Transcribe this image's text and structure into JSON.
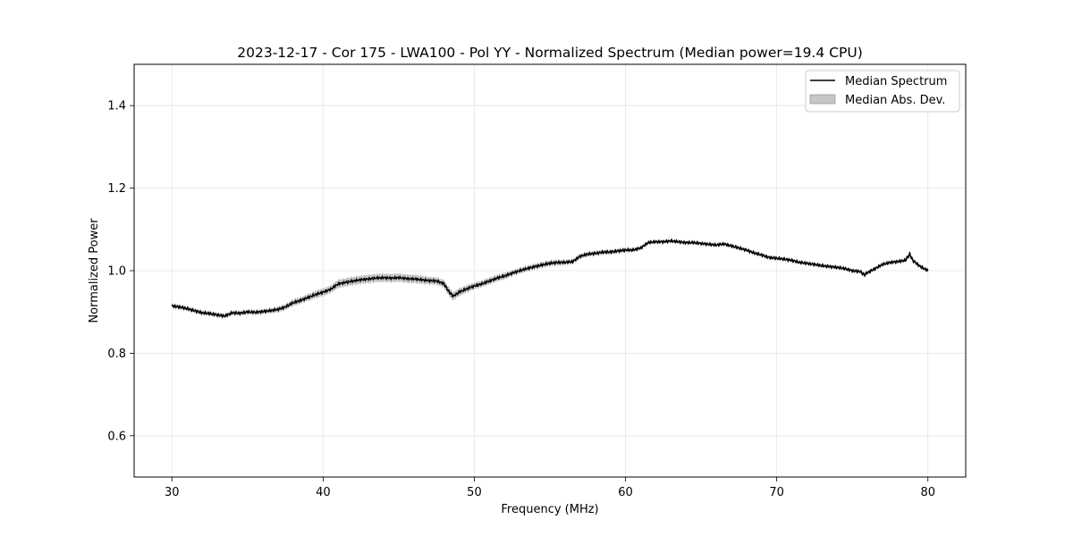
{
  "chart_data": {
    "type": "line",
    "title": "2023-12-17 - Cor 175 - LWA100 - Pol YY - Normalized Spectrum (Median power=19.4 CPU)",
    "xlabel": "Frequency (MHz)",
    "ylabel": "Normalized Power",
    "xlim": [
      27.5,
      82.5
    ],
    "ylim": [
      0.5,
      1.5
    ],
    "xticks": [
      30,
      40,
      50,
      60,
      70,
      80
    ],
    "xtick_labels": [
      "30",
      "40",
      "50",
      "60",
      "70",
      "80"
    ],
    "yticks": [
      0.6,
      0.8,
      1.0,
      1.2,
      1.4
    ],
    "ytick_labels": [
      "0.6",
      "0.8",
      "1.0",
      "1.2",
      "1.4"
    ],
    "grid": true,
    "legend": {
      "position": "top-right",
      "entries": [
        "Median Spectrum",
        "Median Abs. Dev."
      ]
    },
    "series": [
      {
        "name": "Median Spectrum",
        "kind": "line",
        "color": "#000000",
        "x": [
          30.0,
          30.5,
          31.0,
          31.5,
          32.0,
          32.5,
          33.0,
          33.5,
          34.0,
          34.5,
          35.0,
          35.5,
          36.0,
          36.5,
          37.0,
          37.5,
          38.0,
          38.5,
          39.0,
          39.5,
          40.0,
          40.5,
          41.0,
          41.5,
          42.0,
          42.5,
          43.0,
          43.5,
          44.0,
          44.5,
          45.0,
          45.5,
          46.0,
          46.5,
          47.0,
          47.5,
          48.0,
          48.3,
          48.6,
          49.0,
          49.5,
          50.0,
          50.5,
          51.0,
          51.5,
          52.0,
          52.5,
          53.0,
          53.5,
          54.0,
          54.5,
          55.0,
          55.5,
          56.0,
          56.5,
          57.0,
          57.5,
          58.0,
          58.5,
          59.0,
          59.5,
          60.0,
          60.5,
          61.0,
          61.5,
          62.0,
          62.5,
          63.0,
          63.5,
          64.0,
          64.5,
          65.0,
          65.5,
          66.0,
          66.5,
          67.0,
          67.5,
          68.0,
          68.5,
          69.0,
          69.5,
          70.0,
          70.5,
          71.0,
          71.5,
          72.0,
          72.5,
          73.0,
          73.5,
          74.0,
          74.5,
          75.0,
          75.5,
          75.8,
          76.0,
          76.5,
          77.0,
          77.5,
          78.0,
          78.5,
          78.8,
          79.0,
          79.5,
          80.0
        ],
        "y": [
          0.915,
          0.912,
          0.908,
          0.903,
          0.898,
          0.896,
          0.893,
          0.89,
          0.898,
          0.897,
          0.9,
          0.899,
          0.901,
          0.903,
          0.906,
          0.912,
          0.922,
          0.928,
          0.935,
          0.942,
          0.948,
          0.955,
          0.968,
          0.972,
          0.975,
          0.978,
          0.98,
          0.982,
          0.983,
          0.982,
          0.983,
          0.981,
          0.98,
          0.978,
          0.976,
          0.975,
          0.968,
          0.95,
          0.938,
          0.948,
          0.956,
          0.963,
          0.968,
          0.975,
          0.982,
          0.987,
          0.994,
          1.0,
          1.005,
          1.01,
          1.014,
          1.018,
          1.02,
          1.02,
          1.022,
          1.035,
          1.04,
          1.042,
          1.045,
          1.045,
          1.048,
          1.05,
          1.05,
          1.055,
          1.068,
          1.07,
          1.07,
          1.072,
          1.07,
          1.068,
          1.068,
          1.066,
          1.064,
          1.062,
          1.065,
          1.06,
          1.055,
          1.05,
          1.043,
          1.038,
          1.032,
          1.03,
          1.028,
          1.025,
          1.02,
          1.018,
          1.015,
          1.012,
          1.01,
          1.008,
          1.005,
          1.0,
          0.998,
          0.99,
          0.995,
          1.005,
          1.015,
          1.02,
          1.022,
          1.025,
          1.04,
          1.025,
          1.01,
          1.0
        ]
      },
      {
        "name": "Median Abs. Dev.",
        "kind": "band",
        "color": "#c6c6c6",
        "halfwidth": [
          0.004,
          0.004,
          0.004,
          0.004,
          0.004,
          0.004,
          0.004,
          0.004,
          0.004,
          0.004,
          0.004,
          0.004,
          0.004,
          0.004,
          0.005,
          0.005,
          0.006,
          0.006,
          0.006,
          0.007,
          0.007,
          0.007,
          0.008,
          0.008,
          0.008,
          0.008,
          0.008,
          0.008,
          0.008,
          0.008,
          0.008,
          0.008,
          0.008,
          0.008,
          0.007,
          0.007,
          0.007,
          0.008,
          0.008,
          0.007,
          0.007,
          0.006,
          0.006,
          0.006,
          0.006,
          0.006,
          0.005,
          0.005,
          0.005,
          0.005,
          0.005,
          0.005,
          0.005,
          0.004,
          0.004,
          0.004,
          0.004,
          0.004,
          0.004,
          0.004,
          0.004,
          0.004,
          0.003,
          0.003,
          0.003,
          0.003,
          0.003,
          0.003,
          0.003,
          0.003,
          0.003,
          0.003,
          0.003,
          0.003,
          0.003,
          0.003,
          0.003,
          0.003,
          0.003,
          0.003,
          0.003,
          0.003,
          0.003,
          0.003,
          0.003,
          0.003,
          0.003,
          0.003,
          0.003,
          0.003,
          0.003,
          0.003,
          0.003,
          0.003,
          0.003,
          0.003,
          0.003,
          0.003,
          0.003,
          0.003,
          0.003,
          0.003,
          0.003,
          0.003
        ]
      }
    ]
  }
}
